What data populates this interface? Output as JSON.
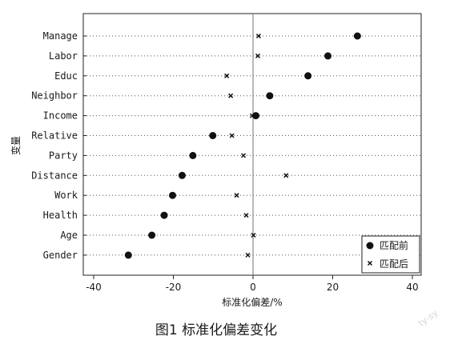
{
  "chart_data": {
    "type": "scatter",
    "title": "",
    "xlabel": "标准化偏差/%",
    "ylabel": "变量",
    "xlim": [
      -42,
      42
    ],
    "xticks": [
      -40,
      -20,
      0,
      20,
      40
    ],
    "grid": "horizontal dotted",
    "legend_position": "bottom-right",
    "categories": [
      "Manage",
      "Labor",
      "Educ",
      "Neighbor",
      "Income",
      "Relative",
      "Party",
      "Distance",
      "Work",
      "Health",
      "Age",
      "Gender"
    ],
    "series": [
      {
        "name": "匹配前",
        "marker": "filled-circle",
        "color": "#111111",
        "values": [
          26.2,
          18.8,
          13.8,
          4.2,
          0.7,
          -10.1,
          -15.1,
          -17.8,
          -20.2,
          -22.3,
          -25.4,
          -31.3
        ]
      },
      {
        "name": "匹配后",
        "marker": "x",
        "color": "#111111",
        "values": [
          1.4,
          1.2,
          -6.6,
          -5.6,
          -0.2,
          -5.3,
          -2.4,
          8.3,
          -4.1,
          -1.7,
          0.1,
          -1.3
        ]
      }
    ]
  },
  "caption": "图1 标准化偏差变化",
  "watermark": "ty-sy"
}
